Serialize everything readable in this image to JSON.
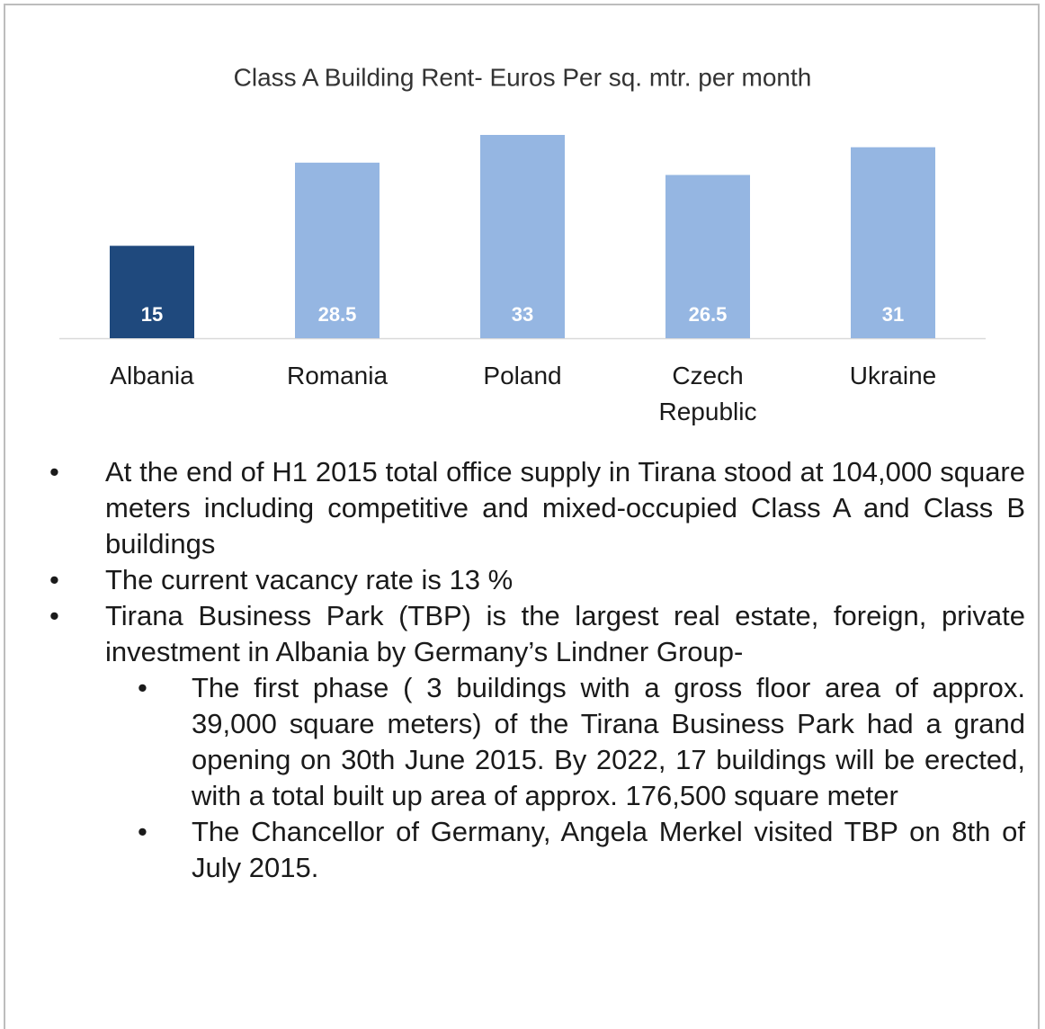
{
  "chart_data": {
    "type": "bar",
    "title": "Class A Building Rent- Euros Per sq. mtr. per month",
    "categories": [
      "Albania",
      "Romania",
      "Poland",
      "Czech Republic",
      "Ukraine"
    ],
    "values": [
      15,
      28.5,
      33,
      26.5,
      31
    ],
    "colors": [
      "#1f497d",
      "#95b6e2",
      "#95b6e2",
      "#95b6e2",
      "#95b6e2"
    ]
  },
  "bullets": [
    {
      "text": "At the end of H1 2015 total office supply in Tirana stood at 104,000 square meters including competitive and mixed-occupied Class A and Class B buildings"
    },
    {
      "text": "The current vacancy rate is 13 %"
    },
    {
      "text": "Tirana Business Park (TBP) is the largest real estate, foreign, private investment in Albania by Germany’s Lindner Group-",
      "sub": [
        "The first phase ( 3 buildings with a gross floor area of approx. 39,000 square meters) of the Tirana Business Park had a grand opening on 30th June 2015. By 2022, 17 buildings will be erected, with a total built up area of approx. 176,500 square meter",
        "The Chancellor of Germany, Angela Merkel visited TBP on 8th of July 2015."
      ]
    }
  ]
}
